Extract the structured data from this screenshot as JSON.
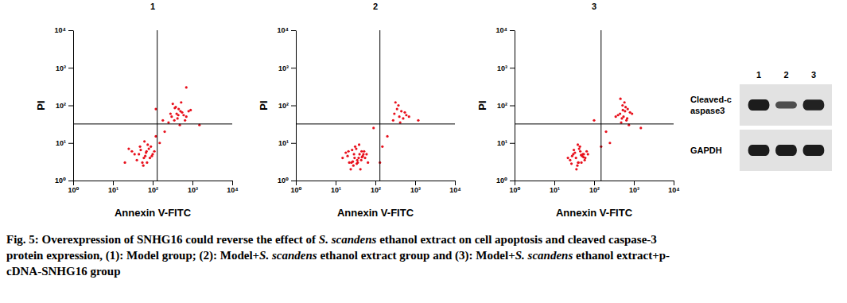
{
  "chart_data": [
    {
      "type": "scatter",
      "title": "1",
      "x_label": "Annexin V-FITC",
      "y_label": "PI",
      "log": true,
      "color": "#e8101c",
      "xlim": [
        1,
        10000
      ],
      "ylim": [
        1,
        10000
      ],
      "xticks": [
        {
          "value": 1,
          "label": "10⁰"
        },
        {
          "value": 10,
          "label": "10¹"
        },
        {
          "value": 100,
          "label": "10²"
        },
        {
          "value": 1000,
          "label": "10³"
        },
        {
          "value": 10000,
          "label": "10⁴"
        }
      ],
      "yticks": [
        {
          "value": 1,
          "label": "10⁰"
        },
        {
          "value": 10,
          "label": "10¹"
        },
        {
          "value": 100,
          "label": "10²"
        },
        {
          "value": 1000,
          "label": "10³"
        },
        {
          "value": 10000,
          "label": "10⁴"
        }
      ],
      "quadrant_x": 130,
      "quadrant_y": 32,
      "x": [
        45,
        60,
        70,
        55,
        80,
        35,
        90,
        65,
        50,
        100,
        40,
        75,
        58,
        85,
        30,
        62,
        110,
        48,
        72,
        95,
        25,
        68,
        150,
        200,
        20,
        120,
        300,
        400,
        500,
        350,
        450,
        600,
        250,
        380,
        420,
        550,
        700,
        320,
        480,
        900,
        280,
        520,
        650,
        360,
        440,
        800,
        1500,
        180,
        700,
        120
      ],
      "values": [
        5,
        4,
        6,
        3,
        7,
        5,
        8,
        4.5,
        6.5,
        5,
        3.5,
        9,
        2.5,
        4,
        6,
        11,
        6,
        8,
        3,
        4.5,
        7,
        5.5,
        10,
        20,
        3,
        15,
        50,
        60,
        70,
        40,
        80,
        55,
        35,
        90,
        45,
        65,
        50,
        110,
        30,
        75,
        60,
        120,
        40,
        85,
        55,
        70,
        30,
        40,
        300,
        80
      ]
    },
    {
      "type": "scatter",
      "title": "2",
      "x_label": "Annexin V-FITC",
      "y_label": "PI",
      "log": true,
      "color": "#e8101c",
      "xlim": [
        1,
        10000
      ],
      "ylim": [
        1,
        10000
      ],
      "xticks": [
        {
          "value": 1,
          "label": "10⁰"
        },
        {
          "value": 10,
          "label": "10¹"
        },
        {
          "value": 100,
          "label": "10²"
        },
        {
          "value": 1000,
          "label": "10³"
        },
        {
          "value": 10000,
          "label": "10⁴"
        }
      ],
      "yticks": [
        {
          "value": 1,
          "label": "10⁰"
        },
        {
          "value": 10,
          "label": "10¹"
        },
        {
          "value": 100,
          "label": "10²"
        },
        {
          "value": 1000,
          "label": "10³"
        },
        {
          "value": 10000,
          "label": "10⁴"
        }
      ],
      "quadrant_x": 130,
      "quadrant_y": 32,
      "x": [
        30,
        25,
        40,
        35,
        20,
        45,
        28,
        50,
        33,
        22,
        38,
        42,
        18,
        55,
        26,
        36,
        48,
        31,
        24,
        60,
        44,
        29,
        34,
        15,
        52,
        39,
        27,
        46,
        21,
        65,
        300,
        400,
        350,
        500,
        450,
        280,
        600,
        380,
        420,
        550,
        320,
        700,
        150,
        200,
        90,
        1200,
        130
      ],
      "values": [
        4,
        3,
        5,
        3.5,
        4.5,
        6,
        2.5,
        5,
        7,
        3,
        4,
        2,
        5.5,
        4,
        6.5,
        3,
        4.5,
        8,
        2,
        5,
        3.5,
        5,
        2.8,
        4,
        6,
        9,
        3.2,
        4.2,
        6,
        3,
        60,
        50,
        80,
        45,
        70,
        40,
        55,
        100,
        35,
        65,
        120,
        50,
        8,
        15,
        25,
        40,
        3
      ]
    },
    {
      "type": "scatter",
      "title": "3",
      "x_label": "Annexin V-FITC",
      "y_label": "PI",
      "log": true,
      "color": "#e8101c",
      "xlim": [
        1,
        10000
      ],
      "ylim": [
        1,
        10000
      ],
      "xticks": [
        {
          "value": 1,
          "label": "10⁰"
        },
        {
          "value": 10,
          "label": "10¹"
        },
        {
          "value": 100,
          "label": "10²"
        },
        {
          "value": 1000,
          "label": "10³"
        },
        {
          "value": 10000,
          "label": "10⁴"
        }
      ],
      "yticks": [
        {
          "value": 1,
          "label": "10⁰"
        },
        {
          "value": 10,
          "label": "10¹"
        },
        {
          "value": 100,
          "label": "10²"
        },
        {
          "value": 1000,
          "label": "10³"
        },
        {
          "value": 10000,
          "label": "10⁴"
        }
      ],
      "quadrant_x": 150,
      "quadrant_y": 32,
      "x": [
        35,
        40,
        30,
        50,
        45,
        25,
        55,
        38,
        42,
        60,
        33,
        48,
        28,
        65,
        36,
        52,
        44,
        22,
        58,
        40,
        31,
        47,
        70,
        27,
        54,
        39,
        450,
        550,
        600,
        500,
        700,
        400,
        650,
        520,
        480,
        800,
        580,
        350,
        620,
        750,
        530,
        900,
        460,
        680,
        200,
        1500,
        150,
        250,
        100
      ],
      "values": [
        4,
        3,
        5,
        4.5,
        6,
        3.5,
        5,
        2.5,
        7,
        4,
        5.5,
        3,
        4.5,
        6,
        2,
        5,
        8,
        4,
        3.5,
        3,
        6.5,
        4.8,
        5,
        2.8,
        4.2,
        9,
        60,
        50,
        70,
        45,
        80,
        55,
        40,
        100,
        35,
        65,
        120,
        50,
        90,
        30,
        75,
        60,
        150,
        45,
        20,
        25,
        8,
        10,
        40
      ]
    }
  ],
  "blot": {
    "lanes": [
      "1",
      "2",
      "3"
    ],
    "rows": [
      {
        "label": [
          "Cleaved-c",
          "aspase3"
        ],
        "intensity": [
          1,
          0.6,
          0.95
        ]
      },
      {
        "label": [
          "GAPDH"
        ],
        "intensity": [
          1,
          1,
          1
        ]
      }
    ]
  },
  "caption": {
    "lines": [
      [
        "Fig. 5: Overexpression of SNHG16 could reverse the effect of ",
        "S. scandens",
        " ethanol extract on cell apoptosis and cleaved caspase-3"
      ],
      [
        "protein expression, (1): Model group; (2): Model+",
        "S. scandens",
        " ethanol extract group and (3): Model+",
        "S. scandens",
        " ethanol extract+p-"
      ],
      [
        "cDNA-SNHG16 group"
      ]
    ]
  }
}
